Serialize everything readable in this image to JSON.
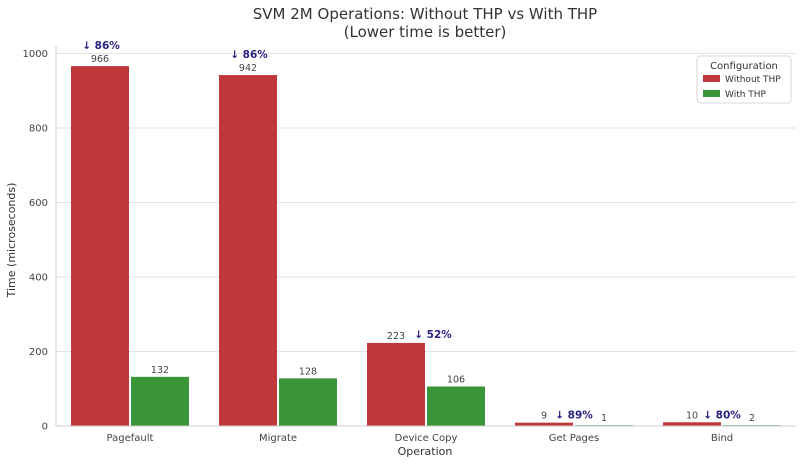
{
  "chart_data": {
    "type": "bar",
    "title": "SVM 2M Operations: Without THP vs With THP",
    "subtitle": "(Lower time is better)",
    "xlabel": "Operation",
    "ylabel": "Time (microseconds)",
    "categories": [
      "Pagefault",
      "Migrate",
      "Device Copy",
      "Get Pages",
      "Bind"
    ],
    "series": [
      {
        "name": "Without THP",
        "color": "#c0373a",
        "values": [
          966,
          942,
          223,
          9,
          10
        ],
        "labels": [
          "966",
          "942",
          "223",
          "9",
          "10"
        ]
      },
      {
        "name": "With THP",
        "color": "#3a9438",
        "values": [
          132,
          128,
          106,
          1,
          2
        ],
        "labels": [
          "132",
          "128",
          "106",
          "1",
          "2"
        ]
      }
    ],
    "improvements": [
      "↓ 86%",
      "↓ 86%",
      "↓ 52%",
      "↓ 89%",
      "↓ 80%"
    ],
    "ylim": [
      0,
      1020
    ],
    "yticks": [
      0,
      200,
      400,
      600,
      800,
      1000
    ],
    "ytick_labels": [
      "0",
      "200",
      "400",
      "600",
      "800",
      "1000"
    ],
    "grid": true,
    "legend": {
      "title": "Configuration",
      "placement": "top-right"
    }
  }
}
